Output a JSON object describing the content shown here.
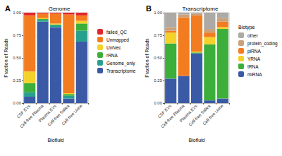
{
  "chart_data": [
    {
      "type": "bar",
      "panel_label": "A",
      "title": "Genome",
      "x_label": "Biofluid",
      "y_label": "Fraction of Reads",
      "categories": [
        "CSF EVs",
        "Cell-free Plasma",
        "Plasma EVs",
        "Cell-free Saliva",
        "Cell-free Urine"
      ],
      "series": [
        {
          "name": "failed_QC",
          "color": "#e3242b",
          "values": [
            0.03,
            0.01,
            0.01,
            0.02,
            0.03
          ]
        },
        {
          "name": "Unmapped",
          "color": "#f47c20",
          "values": [
            0.62,
            0.05,
            0.11,
            0.87,
            0.06
          ]
        },
        {
          "name": "UniVec",
          "color": "#f4d22a",
          "values": [
            0.13,
            0.01,
            0.01,
            0.01,
            0.03
          ]
        },
        {
          "name": "rRNA",
          "color": "#3cae3a",
          "values": [
            0.1,
            0.01,
            0.01,
            0.02,
            0.08
          ]
        },
        {
          "name": "Genome_only",
          "color": "#27a08e",
          "values": [
            0.05,
            0.02,
            0.02,
            0.03,
            0.12
          ]
        },
        {
          "name": "Transcriptome",
          "color": "#3b5aa6",
          "values": [
            0.07,
            0.9,
            0.84,
            0.05,
            0.68
          ]
        }
      ],
      "ylim": [
        0,
        1
      ],
      "yticks": [
        {
          "value": 0,
          "label": "0.00"
        },
        {
          "value": 0.25,
          "label": "0.25"
        },
        {
          "value": 0.5,
          "label": "0.50"
        },
        {
          "value": 0.75,
          "label": "0.75"
        },
        {
          "value": 1,
          "label": "1.00"
        }
      ],
      "stacked": true,
      "grid": true,
      "legend": "right"
    },
    {
      "type": "bar",
      "panel_label": "B",
      "title": "Transcriptome",
      "x_label": "Biofluid",
      "y_label": "Fraction of Reads",
      "legend_title": "Biotype",
      "categories": [
        "CSF EVs",
        "Cell-free Plasma",
        "Plasma EVs",
        "Cell-free Saliva",
        "Cell-free Urine"
      ],
      "series": [
        {
          "name": "other",
          "color": "#ada9a5",
          "values": [
            0.16,
            0.02,
            0.01,
            0.18,
            0.06
          ]
        },
        {
          "name": "protein_coding",
          "color": "#c9a27c",
          "values": [
            0.04,
            0.03,
            0.02,
            0.04,
            0.04
          ]
        },
        {
          "name": "piRNA",
          "color": "#f47c20",
          "values": [
            0.02,
            0.65,
            0.4,
            0.05,
            0.06
          ]
        },
        {
          "name": "YRNA",
          "color": "#f4d22a",
          "values": [
            0.12,
            0,
            0.01,
            0.08,
            0.02
          ]
        },
        {
          "name": "tRNA",
          "color": "#3cae3a",
          "values": [
            0.39,
            0,
            0.01,
            0.62,
            0.77
          ]
        },
        {
          "name": "miRNA",
          "color": "#3b5aa6",
          "values": [
            0.27,
            0.3,
            0.55,
            0.03,
            0.05
          ]
        }
      ],
      "ylim": [
        0,
        1
      ],
      "yticks": [
        {
          "value": 0,
          "label": "0.00"
        },
        {
          "value": 0.25,
          "label": "0.25"
        },
        {
          "value": 0.5,
          "label": "0.50"
        },
        {
          "value": 0.75,
          "label": "0.75"
        },
        {
          "value": 1,
          "label": "1.00"
        }
      ],
      "stacked": true,
      "grid": true,
      "legend": "right"
    }
  ]
}
